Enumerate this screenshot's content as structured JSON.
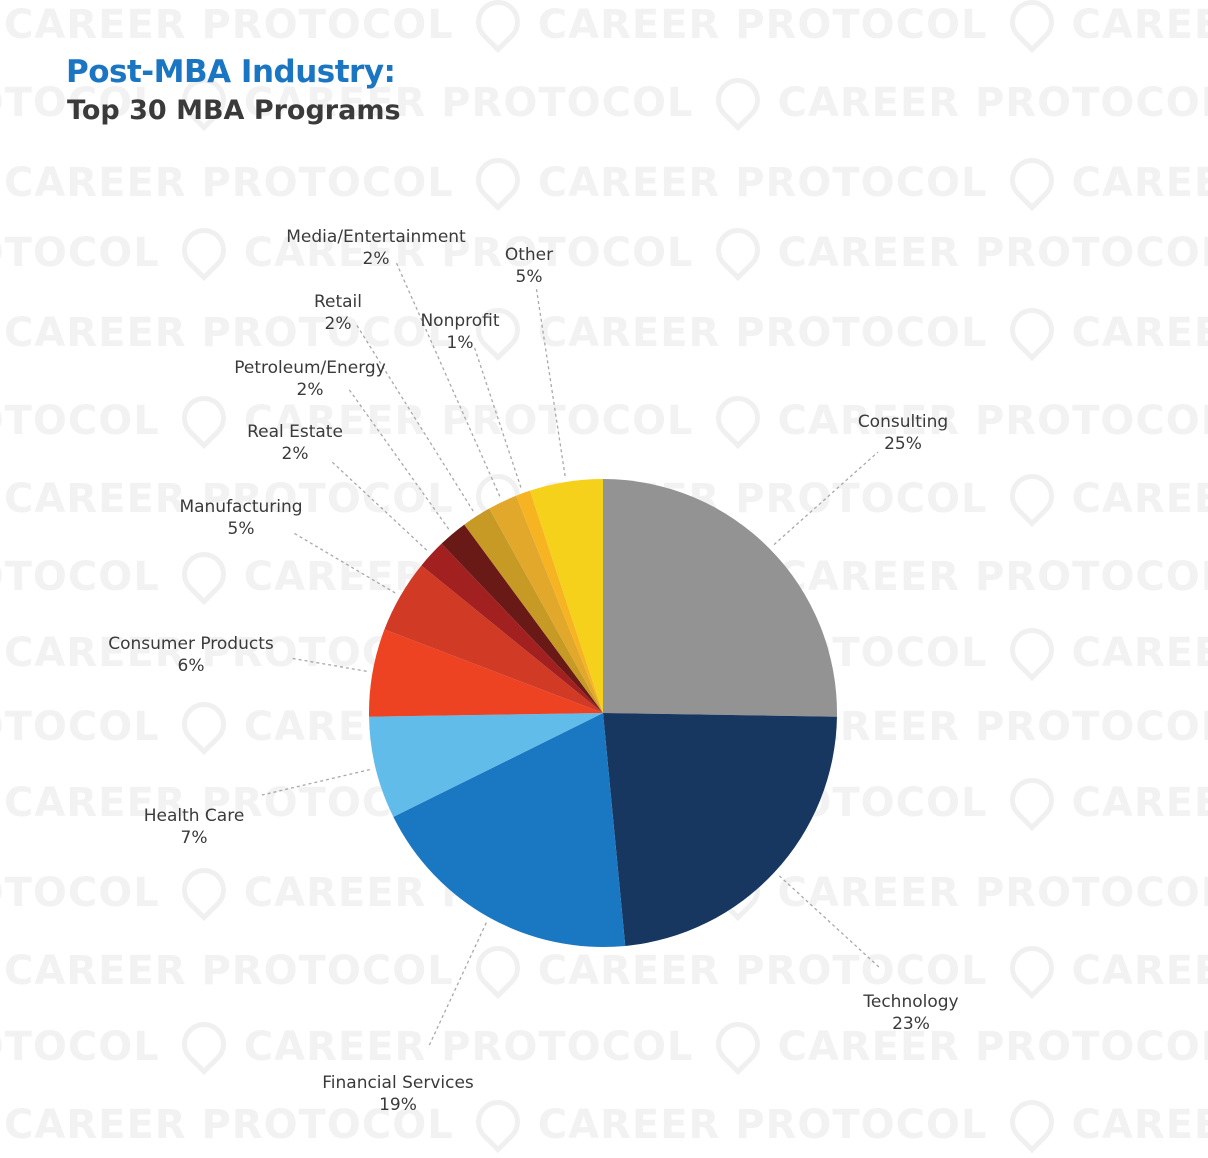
{
  "header": {
    "title": "Post-MBA Industry:",
    "subtitle": "Top 30 MBA Programs"
  },
  "watermark": {
    "text": "CAREER PROTOCOL"
  },
  "chart_data": {
    "type": "pie",
    "title": "Post-MBA Industry:",
    "subtitle": "Top 30 MBA Programs",
    "start": "12 o'clock, clockwise",
    "slices": [
      {
        "label": "Consulting",
        "value": 25,
        "display": "25%",
        "color": "#939393"
      },
      {
        "label": "Technology",
        "value": 23,
        "display": "23%",
        "color": "#173660"
      },
      {
        "label": "Financial Services",
        "value": 19,
        "display": "19%",
        "color": "#1a78c2"
      },
      {
        "label": "Health Care",
        "value": 7,
        "display": "7%",
        "color": "#62bcea"
      },
      {
        "label": "Consumer Products",
        "value": 6,
        "display": "6%",
        "color": "#ee4322"
      },
      {
        "label": "Manufacturing",
        "value": 5,
        "display": "5%",
        "color": "#d13a25"
      },
      {
        "label": "Real Estate",
        "value": 2,
        "display": "2%",
        "color": "#a32020"
      },
      {
        "label": "Petroleum/Energy",
        "value": 2,
        "display": "2%",
        "color": "#6a1a16"
      },
      {
        "label": "Retail",
        "value": 2,
        "display": "2%",
        "color": "#c69a24"
      },
      {
        "label": "Media/Entertainment",
        "value": 2,
        "display": "2%",
        "color": "#e2a82c"
      },
      {
        "label": "Nonprofit",
        "value": 1,
        "display": "1%",
        "color": "#f6b423"
      },
      {
        "label": "Other",
        "value": 5,
        "display": "5%",
        "color": "#f5d11c"
      }
    ],
    "leader_lines": "dashed",
    "legend": "none"
  }
}
